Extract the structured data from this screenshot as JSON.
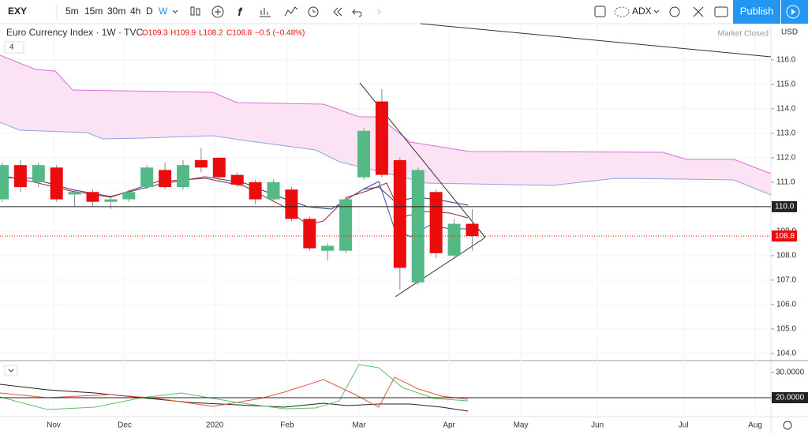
{
  "toolbar": {
    "symbol": "EXY",
    "intervals": [
      "5m",
      "15m",
      "30m",
      "4h",
      "D",
      "W"
    ],
    "indicator": "ADX",
    "publish": "Publish"
  },
  "legend": {
    "name": "Euro Currency Index · 1W · TVC",
    "ohlc": [
      "O109.3",
      "H109.9",
      "L108.2",
      "C108.8",
      "−0.5 (−0.48%)"
    ],
    "studies_count": "4",
    "status": "Market Closed",
    "currency": "USD"
  },
  "chart_data": {
    "type": "candlestick",
    "categories": [
      null,
      null,
      null,
      null,
      null,
      null,
      null,
      null,
      null,
      null,
      null,
      null,
      null,
      null,
      null,
      null,
      null,
      null,
      null,
      null,
      null,
      null,
      null,
      null,
      null,
      null,
      null
    ],
    "open": [
      110.3,
      111.7,
      111.0,
      111.6,
      110.5,
      110.6,
      110.2,
      110.3,
      110.8,
      111.5,
      110.8,
      111.9,
      112.0,
      111.3,
      111.0,
      110.3,
      110.7,
      109.5,
      108.2,
      108.2,
      111.2,
      114.3,
      111.9,
      106.9,
      110.6,
      108.0,
      109.3
    ],
    "high": [
      111.8,
      111.9,
      111.8,
      111.7,
      110.7,
      110.7,
      110.4,
      110.7,
      111.7,
      111.8,
      111.9,
      112.4,
      112.0,
      111.4,
      111.1,
      111.1,
      110.8,
      109.6,
      108.5,
      110.4,
      113.2,
      114.8,
      112.0,
      111.6,
      110.7,
      109.5,
      109.9
    ],
    "low": [
      110.2,
      110.6,
      110.8,
      110.2,
      110.0,
      110.0,
      109.9,
      110.2,
      110.7,
      110.7,
      110.7,
      111.4,
      111.0,
      110.8,
      110.1,
      110.2,
      109.4,
      108.2,
      107.8,
      108.1,
      111.1,
      111.2,
      106.6,
      106.8,
      107.9,
      107.9,
      108.2
    ],
    "close": [
      111.7,
      110.8,
      111.7,
      110.3,
      110.6,
      110.2,
      110.3,
      110.6,
      111.6,
      110.8,
      111.7,
      111.6,
      111.2,
      110.9,
      110.3,
      111.0,
      109.5,
      108.3,
      108.4,
      110.3,
      113.1,
      111.3,
      107.5,
      111.5,
      108.1,
      109.3,
      108.8
    ],
    "up_color": "#53b987",
    "down_color": "#eb0d0d",
    "ylim": [
      103.74,
      117.48
    ],
    "yticks": [
      {
        "value": 104,
        "label": "104.0"
      },
      {
        "value": 105,
        "label": "105.0"
      },
      {
        "value": 106,
        "label": "106.0"
      },
      {
        "value": 107,
        "label": "107.0"
      },
      {
        "value": 108,
        "label": "108.0"
      },
      {
        "value": 109,
        "label": "109.0"
      },
      {
        "value": 111,
        "label": "111.0"
      },
      {
        "value": 112,
        "label": "112.0"
      },
      {
        "value": 113,
        "label": "113.0"
      },
      {
        "value": 114,
        "label": "114.0"
      },
      {
        "value": 115,
        "label": "115.0"
      },
      {
        "value": 116,
        "label": "116.0"
      }
    ],
    "xlim": [
      -0.13,
      42.53
    ],
    "xticks": [
      {
        "value": 2.84,
        "label": "Nov"
      },
      {
        "value": 6.77,
        "label": "Dec"
      },
      {
        "value": 11.75,
        "label": "2020"
      },
      {
        "value": 15.76,
        "label": "Feb"
      },
      {
        "value": 19.74,
        "label": "Mar"
      },
      {
        "value": 24.72,
        "label": "Apr"
      },
      {
        "value": 28.69,
        "label": "May"
      },
      {
        "value": 32.93,
        "label": "Jun"
      },
      {
        "value": 37.69,
        "label": "Jul"
      },
      {
        "value": 41.66,
        "label": "Aug"
      }
    ],
    "grid": true,
    "hline": {
      "value": 110,
      "label": "110.0"
    },
    "last": {
      "value": 108.8,
      "label": "108.8"
    }
  },
  "adx": {
    "ylim": [
      12.5,
      34.375
    ],
    "yticks": [
      {
        "value": 30,
        "label": "30.0000"
      },
      {
        "value": 20,
        "label": "20.0000"
      }
    ]
  }
}
